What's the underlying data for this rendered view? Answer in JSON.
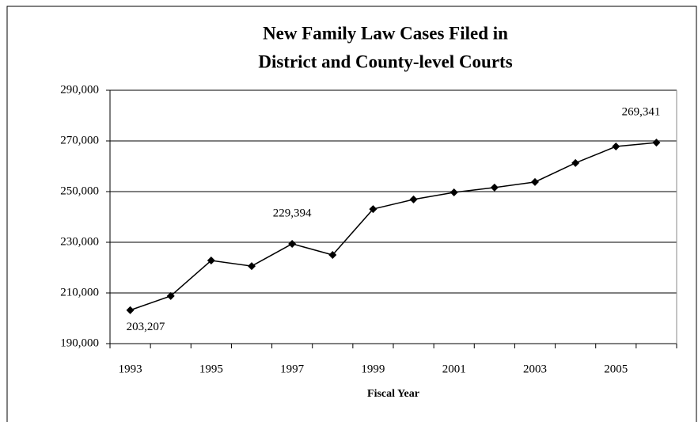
{
  "chart_data": {
    "type": "line",
    "title": "New Family Law Cases Filed in",
    "subtitle": "District and County-level Courts",
    "x_label": "Fiscal Year",
    "categories": [
      "1993",
      null,
      "1995",
      null,
      "1997",
      null,
      "1999",
      null,
      "2001",
      null,
      "2003",
      null,
      "2005",
      null
    ],
    "series": [
      {
        "name": "New Family Law Cases",
        "color": "#000000",
        "values": [
          203207,
          208800,
          222800,
          220600,
          229394,
          225000,
          243100,
          246900,
          249700,
          251600,
          253800,
          261300,
          267800,
          269341
        ],
        "value_labels": [
          "203,207",
          null,
          null,
          null,
          "229,394",
          null,
          null,
          null,
          null,
          null,
          null,
          null,
          null,
          "269,341"
        ]
      }
    ],
    "ylim": [
      190000,
      290000
    ],
    "yticks": [
      {
        "value": 190000,
        "label": "190,000"
      },
      {
        "value": 210000,
        "label": "210,000"
      },
      {
        "value": 230000,
        "label": "230,000"
      },
      {
        "value": 250000,
        "label": "250,000"
      },
      {
        "value": 270000,
        "label": "270,000"
      },
      {
        "value": 290000,
        "label": "290,000"
      }
    ],
    "grid": true
  }
}
